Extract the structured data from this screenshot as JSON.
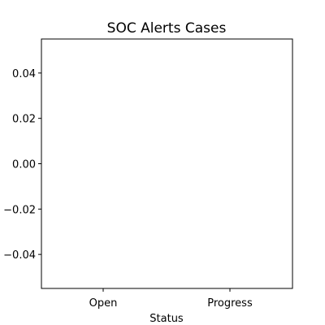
{
  "chart_data": {
    "type": "bar",
    "title": "SOC Alerts Cases",
    "xlabel": "Status",
    "ylabel": "",
    "categories": [
      "Open",
      "Progress"
    ],
    "values": [
      0,
      0
    ],
    "ylim": [
      -0.055,
      0.055
    ],
    "yticks": [
      0.04,
      0.02,
      0.0,
      -0.02,
      -0.04
    ],
    "ytick_labels": [
      "0.04",
      "0.02",
      "0.00",
      "−0.02",
      "−0.04"
    ],
    "grid": false,
    "legend": "none"
  }
}
